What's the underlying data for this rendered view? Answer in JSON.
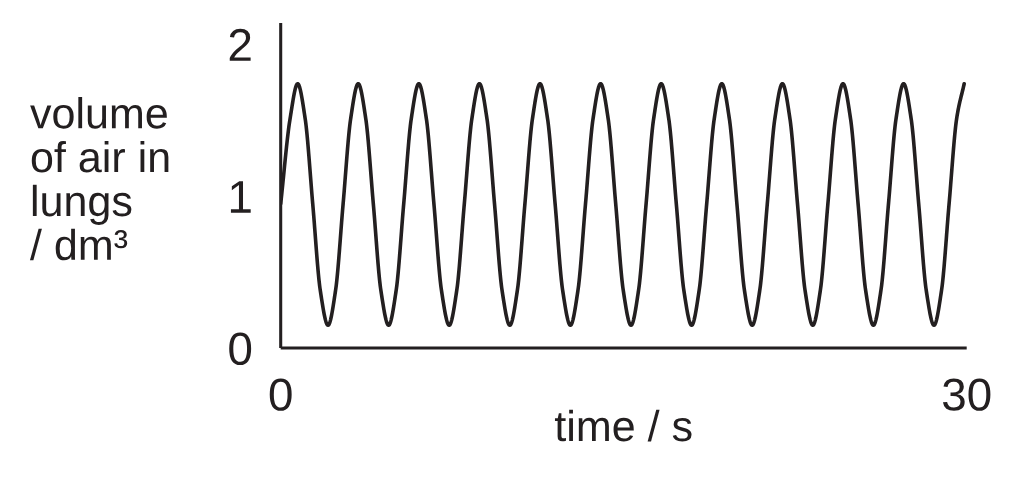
{
  "chart_data": {
    "type": "line",
    "xlabel": "time / s",
    "ylabel": "volume\nof air in\nlungs\n/ dm³",
    "x": [
      0,
      0.41,
      0.74,
      1.07,
      1.4,
      1.73,
      2.07,
      2.4,
      2.73,
      3.06,
      3.39,
      3.72,
      4.05,
      4.38,
      4.72,
      5.05,
      5.38,
      5.71,
      6.04,
      6.37,
      6.7,
      7.03,
      7.37,
      7.7,
      8.03,
      8.36,
      8.69,
      9.02,
      9.35,
      9.68,
      10.02,
      10.35,
      10.68,
      11.01,
      11.34,
      11.67,
      12.0,
      12.33,
      12.67,
      13.0,
      13.33,
      13.66,
      13.99,
      14.32,
      14.65,
      14.98,
      15.32,
      15.65,
      15.98,
      16.31,
      16.64,
      16.97,
      17.3,
      17.63,
      17.97,
      18.3,
      18.63,
      18.96,
      19.29,
      19.62,
      19.95,
      20.28,
      20.62,
      20.95,
      21.28,
      21.61,
      21.94,
      22.27,
      22.6,
      22.93,
      23.27,
      23.6,
      23.93,
      24.26,
      24.59,
      24.92,
      25.25,
      25.58,
      25.92,
      26.25,
      26.58,
      26.91,
      27.24,
      27.57,
      27.9,
      28.23,
      28.57,
      28.9,
      29.23,
      29.56,
      29.89
    ],
    "series": [
      {
        "color": "#231f20",
        "values": [
          0.95,
          1.51,
          1.74,
          1.51,
          0.95,
          0.38,
          0.15,
          0.38,
          0.95,
          1.51,
          1.74,
          1.51,
          0.95,
          0.38,
          0.15,
          0.38,
          0.95,
          1.51,
          1.74,
          1.51,
          0.95,
          0.38,
          0.15,
          0.38,
          0.95,
          1.51,
          1.74,
          1.51,
          0.95,
          0.38,
          0.15,
          0.38,
          0.95,
          1.51,
          1.74,
          1.51,
          0.95,
          0.38,
          0.15,
          0.38,
          0.95,
          1.51,
          1.74,
          1.51,
          0.95,
          0.38,
          0.15,
          0.38,
          0.95,
          1.51,
          1.74,
          1.51,
          0.95,
          0.38,
          0.15,
          0.38,
          0.95,
          1.51,
          1.74,
          1.51,
          0.95,
          0.38,
          0.15,
          0.38,
          0.95,
          1.51,
          1.74,
          1.51,
          0.95,
          0.38,
          0.15,
          0.38,
          0.95,
          1.51,
          1.74,
          1.51,
          0.95,
          0.38,
          0.15,
          0.38,
          0.95,
          1.51,
          1.74,
          1.51,
          0.95,
          0.38,
          0.15,
          0.38,
          0.95,
          1.51,
          1.74
        ]
      }
    ],
    "xlim": [
      0,
      30
    ],
    "xticks": [
      0,
      30
    ],
    "ylim": [
      0,
      2.14
    ],
    "yticks": [
      0,
      1,
      2
    ],
    "line_style": "solid"
  }
}
